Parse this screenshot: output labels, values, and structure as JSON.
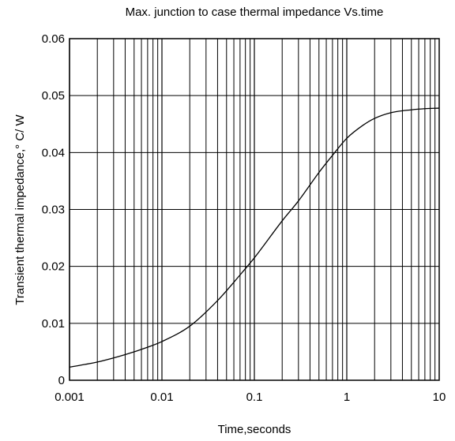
{
  "chart_data": {
    "type": "line",
    "title": "Max. junction to case thermal impedance Vs.time",
    "xlabel": "Time,seconds",
    "ylabel": "Transient thermal impedance,° C/ W",
    "x_scale": "log",
    "xlim": [
      0.001,
      10
    ],
    "ylim": [
      0,
      0.06
    ],
    "x_ticks": [
      0.001,
      0.01,
      0.1,
      1,
      10
    ],
    "x_tick_labels": [
      "0.001",
      "0.01",
      "0.1",
      "1",
      "10"
    ],
    "y_ticks": [
      0,
      0.01,
      0.02,
      0.03,
      0.04,
      0.05,
      0.06
    ],
    "y_tick_labels": [
      "0",
      "0.01",
      "0.02",
      "0.03",
      "0.04",
      "0.05",
      "0.06"
    ],
    "grid": true,
    "series": [
      {
        "color": "#000000",
        "x": [
          0.001,
          0.002,
          0.004,
          0.007,
          0.01,
          0.02,
          0.04,
          0.07,
          0.1,
          0.2,
          0.3,
          0.5,
          0.7,
          1,
          1.5,
          2,
          3,
          5,
          7,
          10
        ],
        "y": [
          0.0023,
          0.0032,
          0.0045,
          0.0058,
          0.0068,
          0.0095,
          0.014,
          0.0185,
          0.0215,
          0.028,
          0.0315,
          0.0365,
          0.0395,
          0.0425,
          0.0448,
          0.046,
          0.047,
          0.0475,
          0.0477,
          0.0478
        ]
      }
    ]
  }
}
